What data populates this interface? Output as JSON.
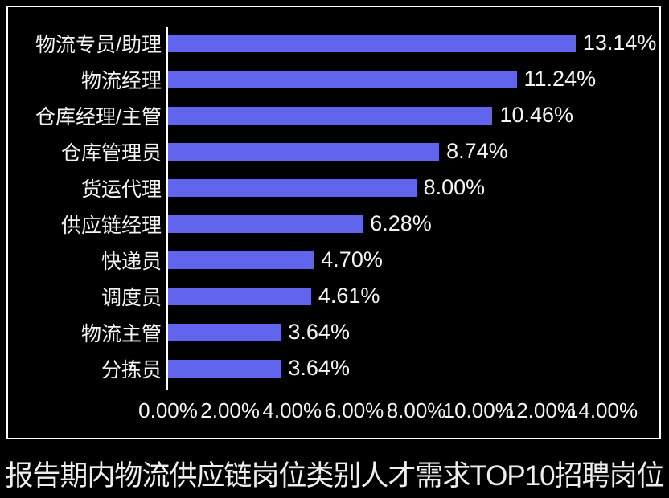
{
  "chart_data": {
    "type": "bar",
    "orientation": "horizontal",
    "title": "报告期内物流供应链岗位类别人才需求TOP10招聘岗位",
    "categories": [
      "物流专员/助理",
      "物流经理",
      "仓库经理/主管",
      "仓库管理员",
      "货运代理",
      "供应链经理",
      "快递员",
      "调度员",
      "物流主管",
      "分拣员"
    ],
    "values": [
      13.14,
      11.24,
      10.46,
      8.74,
      8.0,
      6.28,
      4.7,
      4.61,
      3.64,
      3.64
    ],
    "value_labels": [
      "13.14%",
      "11.24%",
      "10.46%",
      "8.74%",
      "8.00%",
      "6.28%",
      "4.70%",
      "4.61%",
      "3.64%",
      "3.64%"
    ],
    "x_ticks": [
      "0.00%",
      "2.00%",
      "4.00%",
      "6.00%",
      "8.00%",
      "10.00%",
      "12.00%",
      "14.00%"
    ],
    "x_tick_values": [
      0,
      2,
      4,
      6,
      8,
      10,
      12,
      14
    ],
    "xlim": [
      0,
      14
    ],
    "xlabel": "",
    "ylabel": "",
    "grid": false,
    "legend": false,
    "colors": {
      "bar": "#6164ec",
      "background": "#000000",
      "frame_border": "#ffffff",
      "axis_line": "#ffffff",
      "text": "#f5f5f5"
    }
  }
}
